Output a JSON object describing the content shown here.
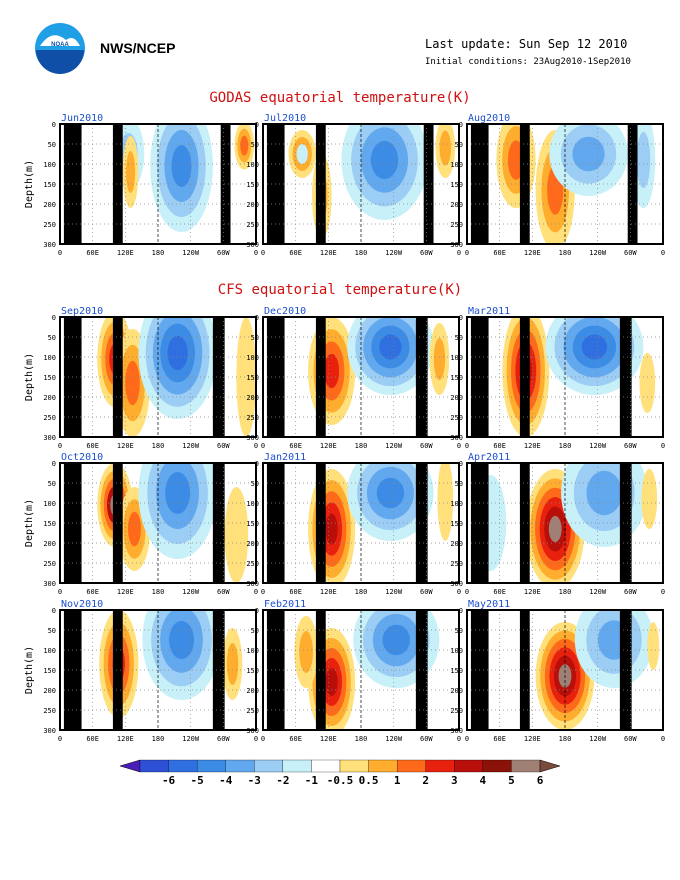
{
  "header": {
    "org": "NWS/NCEP",
    "logo_text": "NOAA",
    "last_update": "Last update: Sun Sep 12 2010",
    "initial_conditions": "Initial conditions: 23Aug2010-1Sep2010"
  },
  "sections": {
    "godas_title": "GODAS equatorial temperature(K)",
    "cfs_title": "CFS equatorial temperature(K)"
  },
  "axes": {
    "ylabel": "Depth(m)",
    "yticks": [
      "0",
      "50",
      "100",
      "150",
      "200",
      "250",
      "300"
    ],
    "xticks": [
      "0",
      "60E",
      "120E",
      "180",
      "120W",
      "60W",
      "0"
    ]
  },
  "colorbar": {
    "labels": [
      "-6",
      "-5",
      "-4",
      "-3",
      "-2",
      "-1",
      "-0.5",
      "0.5",
      "1",
      "2",
      "3",
      "4",
      "5",
      "6"
    ],
    "colors": [
      "#4a1fb8",
      "#2d50d6",
      "#2f6fe0",
      "#3c8ce6",
      "#62a8ee",
      "#9ccdf5",
      "#c8f0f8",
      "#ffffff",
      "#ffe07a",
      "#ffad2e",
      "#ff6a1a",
      "#e8210e",
      "#b80f0a",
      "#8a1208",
      "#a08074",
      "#7a4a3a"
    ]
  },
  "chart_data": {
    "type": "heatmap",
    "title": "",
    "xlabel": "",
    "ylabel": "Depth(m)",
    "xlim": [
      0,
      360
    ],
    "ylim": [
      300,
      0
    ],
    "panels": [
      {
        "section": "GODAS",
        "label": "Jun2010"
      },
      {
        "section": "GODAS",
        "label": "Jul2010"
      },
      {
        "section": "GODAS",
        "label": "Aug2010"
      },
      {
        "section": "CFS",
        "label": "Sep2010"
      },
      {
        "section": "CFS",
        "label": "Dec2010"
      },
      {
        "section": "CFS",
        "label": "Mar2011"
      },
      {
        "section": "CFS",
        "label": "Oct2010"
      },
      {
        "section": "CFS",
        "label": "Jan2011"
      },
      {
        "section": "CFS",
        "label": "Apr2011"
      },
      {
        "section": "CFS",
        "label": "Nov2010"
      },
      {
        "section": "CFS",
        "label": "Feb2011"
      },
      {
        "section": "CFS",
        "label": "May2011"
      }
    ]
  }
}
